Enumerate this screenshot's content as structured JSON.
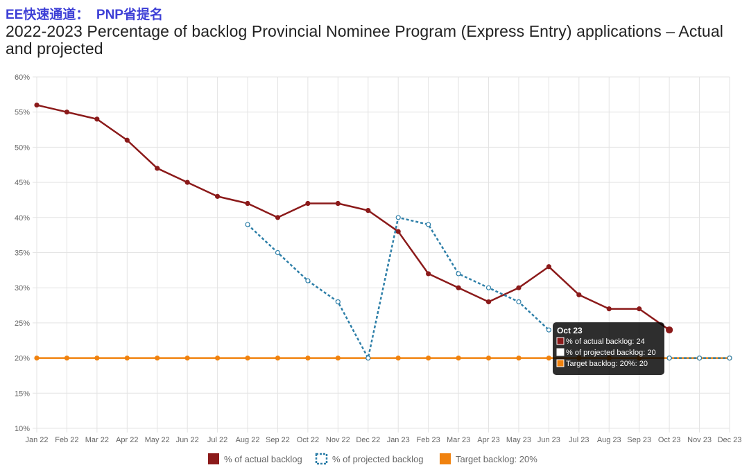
{
  "header": {
    "tag": "EE快速通道：  PNP省提名"
  },
  "chart_data": {
    "type": "line",
    "title": "2022-2023 Percentage of backlog Provincial Nominee Program (Express Entry) applications – Actual and projected",
    "categories": [
      "Jan 22",
      "Feb 22",
      "Mar 22",
      "Apr 22",
      "May 22",
      "Jun 22",
      "Jul 22",
      "Aug 22",
      "Sep 22",
      "Oct 22",
      "Nov 22",
      "Dec 22",
      "Jan 23",
      "Feb 23",
      "Mar 23",
      "Apr 23",
      "May 23",
      "Jun 23",
      "Jul 23",
      "Aug 23",
      "Sep 23",
      "Oct 23",
      "Nov 23",
      "Dec 23"
    ],
    "ylim": [
      10,
      60
    ],
    "yticks": [
      10,
      15,
      20,
      25,
      30,
      35,
      40,
      45,
      50,
      55,
      60
    ],
    "ytick_suffix": "%",
    "grid": true,
    "legend_position": "bottom",
    "series": [
      {
        "name": "% of actual backlog",
        "color": "#8b1a1a",
        "style": "solid",
        "values": [
          56,
          55,
          54,
          51,
          47,
          45,
          43,
          42,
          40,
          42,
          42,
          41,
          38,
          32,
          30,
          28,
          30,
          33,
          29,
          27,
          27,
          24,
          null,
          null
        ]
      },
      {
        "name": "% of projected backlog",
        "color": "#2e7fa8",
        "style": "dotted",
        "values": [
          null,
          null,
          null,
          null,
          null,
          null,
          null,
          39,
          35,
          31,
          28,
          20,
          40,
          39,
          32,
          30,
          28,
          24,
          null,
          null,
          null,
          20,
          20,
          20
        ]
      },
      {
        "name": "Target backlog: 20%",
        "color": "#f0820f",
        "style": "solid",
        "values": [
          20,
          20,
          20,
          20,
          20,
          20,
          20,
          20,
          20,
          20,
          20,
          20,
          20,
          20,
          20,
          20,
          20,
          20,
          20,
          20,
          20,
          20,
          20,
          20
        ]
      }
    ],
    "tooltip": {
      "title": "Oct 23",
      "lines": [
        "% of actual backlog: 24",
        "% of projected backlog: 20",
        "Target backlog: 20%: 20"
      ]
    }
  }
}
